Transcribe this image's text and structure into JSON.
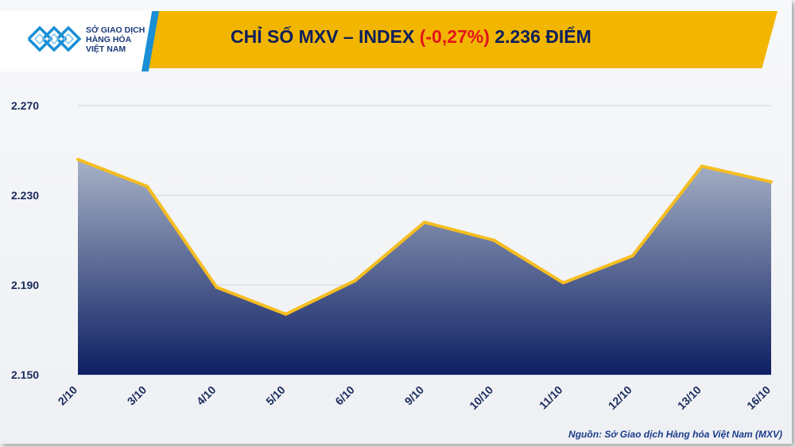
{
  "header": {
    "logo_lines": [
      "SỞ GIAO DỊCH",
      "HÀNG HÓA",
      "VIỆT NAM"
    ],
    "title_prefix": "CHỈ SỐ MXV – INDEX ",
    "title_change": "(-0,27%)",
    "title_suffix": " 2.236 ĐIỂM"
  },
  "source": "Nguồn: Sở Giao dịch Hàng hóa Việt Nam (MXV)",
  "colors": {
    "header_band": "#f2b600",
    "logo_accent": "#1a8fd6",
    "title_text": "#0d1f5c",
    "negative": "#e3141c",
    "line": "#f5bd1f",
    "area_top": "#a7b2c6",
    "area_bottom": "#0e1f63"
  },
  "chart_data": {
    "type": "area",
    "categories": [
      "2/10",
      "3/10",
      "4/10",
      "5/10",
      "6/10",
      "9/10",
      "10/10",
      "11/10",
      "12/10",
      "13/10",
      "16/10"
    ],
    "series": [
      {
        "values": [
          2246,
          2234,
          2189,
          2177,
          2192,
          2218,
          2210,
          2191,
          2203,
          2243,
          2236
        ]
      }
    ],
    "yticks": [
      "2.150",
      "2.190",
      "2.230",
      "2.270"
    ],
    "ylim": [
      2150,
      2270
    ],
    "grid": true,
    "title": "",
    "xlabel": "",
    "ylabel": ""
  }
}
